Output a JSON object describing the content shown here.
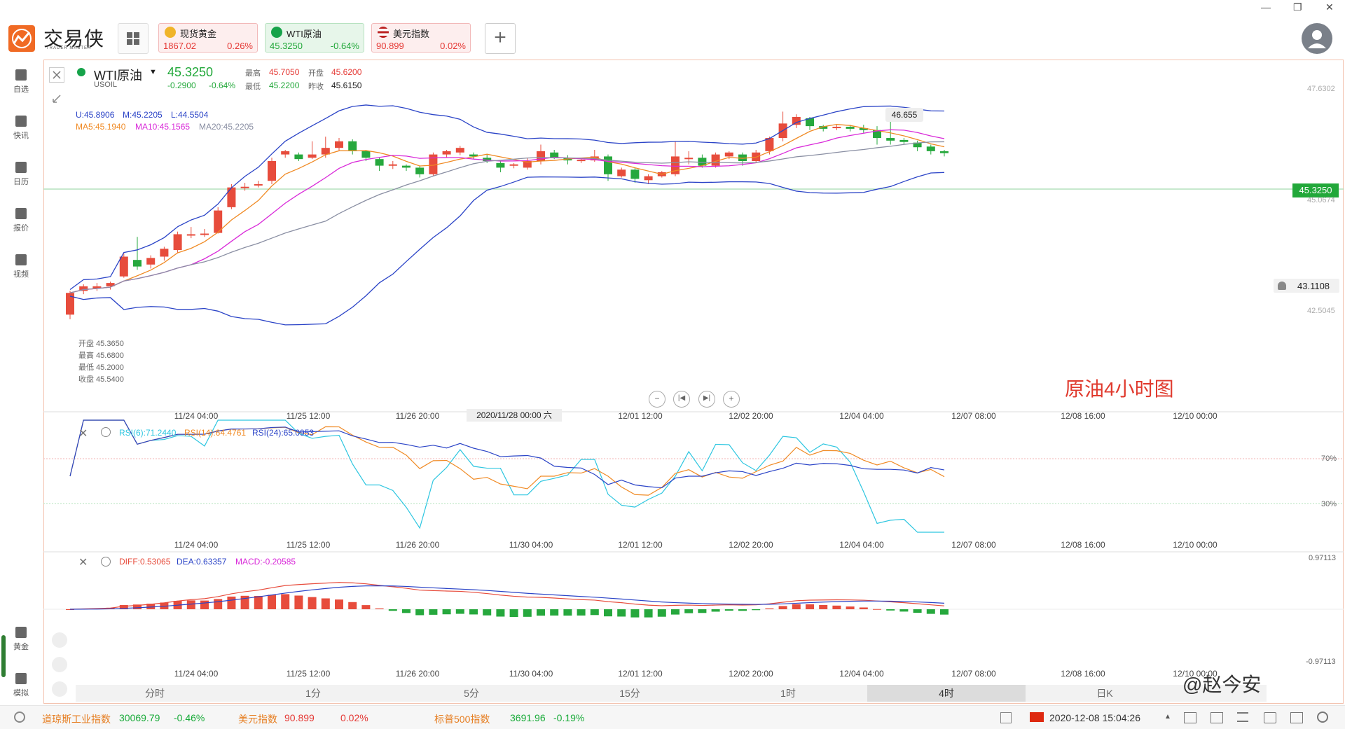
{
  "app": {
    "name": "交易侠",
    "subtitle": "TRADER MASTER"
  },
  "window_controls": [
    "—",
    "❐",
    "✕"
  ],
  "tabs": [
    {
      "name": "现货黄金",
      "price": "1867.02",
      "change": "0.26%",
      "trend": "up",
      "icon": "gold-coin-icon"
    },
    {
      "name": "WTI原油",
      "price": "45.3250",
      "change": "-0.64%",
      "trend": "down",
      "icon": "oil-drop-icon",
      "active": true
    },
    {
      "name": "美元指数",
      "price": "90.899",
      "change": "0.02%",
      "trend": "up",
      "icon": "us-flag-icon"
    }
  ],
  "add_tab_label": "+",
  "sidebar": {
    "items": [
      {
        "label": "自选",
        "icon": "bookmark-icon"
      },
      {
        "label": "快讯",
        "icon": "news-icon"
      },
      {
        "label": "日历",
        "icon": "calendar-icon"
      },
      {
        "label": "报价",
        "icon": "chart-line-icon"
      },
      {
        "label": "视频",
        "icon": "video-icon"
      }
    ],
    "bottom_items": [
      {
        "label": "黄金",
        "icon": "gold-grid-icon"
      },
      {
        "label": "模拟",
        "icon": "wallet-icon"
      }
    ]
  },
  "symbol": {
    "name": "WTI原油",
    "code": "USOIL",
    "price": "45.3250",
    "change": "-0.2900",
    "change_pct": "-0.64%",
    "high_label": "最高",
    "high": "45.7050",
    "open_label": "开盘",
    "open": "45.6200",
    "low_label": "最低",
    "low": "45.2200",
    "prev_label": "昨收",
    "prev": "45.6150"
  },
  "indicators": {
    "boll": {
      "u": "U:45.8906",
      "m": "M:45.2205",
      "l": "L:44.5504"
    },
    "ma": {
      "ma5": "MA5:45.1940",
      "ma10": "MA10:45.1565",
      "ma20": "MA20:45.2205"
    },
    "rsi": {
      "r6": "RSI(6):71.2440",
      "r14": "RSI(14):64.4761",
      "r24": "RSI(24):65.0953"
    },
    "macd": {
      "diff": "DIFF:0.53065",
      "dea": "DEA:0.63357",
      "macd": "MACD:-0.20585"
    }
  },
  "tooltip": {
    "open": "开盘 45.3650",
    "high": "最高 45.6800",
    "low": "最低 45.2000",
    "close": "收盘 45.5400"
  },
  "price_axis": {
    "top": "47.6302",
    "current": "45.3250",
    "current_sub": "45.0674",
    "low": "42.5045",
    "alert": "43.1108",
    "max_marker": "46.655"
  },
  "rsi_axis": {
    "l70": "70%",
    "l30": "30%"
  },
  "macd_axis": {
    "top": "0.97113",
    "bottom": "-0.97113"
  },
  "annotation": "原油4小时图",
  "crosshair_date": "2020/11/28 00:00 六",
  "x_ticks_main": [
    "11/24 04:00",
    "11/25 12:00",
    "11/26 20:00",
    "",
    "12/01 12:00",
    "12/02 20:00",
    "12/04 04:00",
    "12/07 08:00",
    "12/08 16:00",
    "12/10 00:00"
  ],
  "x_ticks_sub": [
    "11/24 04:00",
    "11/25 12:00",
    "11/26 20:00",
    "11/30 04:00",
    "12/01 12:00",
    "12/02 20:00",
    "12/04 04:00",
    "12/07 08:00",
    "12/08 16:00",
    "12/10 00:00"
  ],
  "periods": [
    "分时",
    "1分",
    "5分",
    "15分",
    "1时",
    "4时",
    "日K"
  ],
  "active_period": "4时",
  "status": {
    "items": [
      {
        "name": "道琼斯工业指数",
        "value": "30069.79",
        "change": "-0.46%",
        "trend": "down"
      },
      {
        "name": "美元指数",
        "value": "90.899",
        "change": "0.02%",
        "trend": "up"
      },
      {
        "name": "标普500指数",
        "value": "3691.96",
        "change": "-0.19%",
        "trend": "down"
      }
    ],
    "datetime": "2020-12-08 15:04:26"
  },
  "watermark": "@赵今安",
  "colors": {
    "up": "#e74c3c",
    "down": "#26a83d",
    "accent": "#f06a24",
    "boll": "#2b44c7",
    "ma5": "#f08a24",
    "ma10": "#d92ad9",
    "ma20": "#8a8fa3"
  },
  "chart_data": {
    "type": "candlestick",
    "title": "原油4小时图",
    "candles": [
      [
        44.62,
        44.95,
        44.55,
        44.98
      ],
      [
        44.98,
        45.05,
        44.93,
        45.08
      ],
      [
        45.02,
        45.05,
        44.98,
        45.1
      ],
      [
        45.05,
        45.1,
        45.0,
        45.12
      ],
      [
        45.2,
        45.5,
        45.18,
        45.55
      ],
      [
        45.45,
        45.35,
        45.3,
        45.8
      ],
      [
        45.38,
        45.48,
        45.32,
        45.52
      ],
      [
        45.5,
        45.62,
        45.44,
        45.65
      ],
      [
        45.6,
        45.84,
        45.55,
        45.88
      ],
      [
        45.82,
        45.84,
        45.78,
        45.95
      ],
      [
        45.84,
        45.85,
        45.8,
        45.92
      ],
      [
        45.86,
        46.2,
        45.85,
        46.25
      ],
      [
        46.25,
        46.55,
        46.22,
        46.6
      ],
      [
        46.55,
        46.56,
        46.5,
        46.62
      ],
      [
        46.6,
        46.6,
        46.55,
        46.65
      ],
      [
        46.65,
        46.95,
        46.6,
        47.0
      ],
      [
        47.05,
        47.1,
        47.0,
        47.12
      ],
      [
        47.05,
        46.98,
        46.95,
        47.08
      ],
      [
        47.0,
        47.05,
        46.98,
        47.25
      ],
      [
        47.05,
        47.15,
        47.0,
        47.32
      ],
      [
        47.15,
        47.25,
        47.1,
        47.3
      ],
      [
        47.25,
        47.1,
        47.05,
        47.28
      ],
      [
        47.1,
        47.0,
        46.95,
        47.12
      ],
      [
        46.98,
        46.88,
        46.8,
        47.0
      ],
      [
        46.88,
        46.9,
        46.83,
        46.95
      ],
      [
        46.88,
        46.85,
        46.8,
        46.9
      ],
      [
        46.85,
        46.75,
        46.7,
        46.88
      ],
      [
        46.75,
        47.05,
        46.72,
        47.08
      ],
      [
        47.05,
        47.1,
        47.0,
        47.12
      ],
      [
        47.08,
        47.15,
        47.04,
        47.18
      ],
      [
        47.05,
        47.02,
        46.98,
        47.08
      ],
      [
        47.0,
        46.95,
        46.92,
        47.05
      ],
      [
        46.92,
        46.85,
        46.78,
        46.95
      ],
      [
        46.88,
        46.9,
        46.84,
        46.92
      ],
      [
        46.85,
        46.95,
        46.82,
        47.0
      ],
      [
        46.95,
        47.1,
        46.9,
        47.2
      ],
      [
        47.08,
        47.0,
        46.98,
        47.12
      ],
      [
        47.0,
        46.96,
        46.9,
        47.04
      ],
      [
        46.95,
        46.97,
        46.92,
        47.0
      ],
      [
        46.96,
        47.02,
        46.94,
        47.12
      ],
      [
        47.02,
        46.75,
        46.65,
        47.05
      ],
      [
        46.72,
        46.82,
        46.7,
        46.85
      ],
      [
        46.82,
        46.68,
        46.62,
        46.85
      ],
      [
        46.66,
        46.72,
        46.6,
        46.75
      ],
      [
        46.72,
        46.78,
        46.7,
        46.8
      ],
      [
        46.75,
        47.02,
        46.72,
        47.25
      ],
      [
        46.98,
        47.0,
        46.9,
        47.1
      ],
      [
        47.0,
        46.88,
        46.85,
        47.05
      ],
      [
        46.88,
        47.05,
        46.85,
        47.08
      ],
      [
        47.02,
        47.08,
        46.98,
        47.1
      ],
      [
        47.05,
        46.95,
        46.88,
        47.08
      ],
      [
        46.95,
        47.08,
        46.92,
        47.12
      ],
      [
        47.1,
        47.3,
        47.05,
        47.32
      ],
      [
        47.3,
        47.52,
        47.25,
        47.7
      ],
      [
        47.5,
        47.62,
        47.45,
        47.66
      ],
      [
        47.6,
        47.48,
        47.42,
        47.62
      ],
      [
        47.48,
        47.44,
        47.4,
        47.5
      ],
      [
        47.45,
        47.47,
        47.42,
        47.5
      ],
      [
        47.47,
        47.44,
        47.4,
        47.5
      ],
      [
        47.45,
        47.42,
        47.38,
        47.5
      ],
      [
        47.42,
        47.3,
        47.2,
        47.48
      ],
      [
        47.3,
        47.26,
        47.2,
        47.6
      ],
      [
        47.27,
        47.24,
        47.2,
        47.3
      ],
      [
        47.23,
        47.16,
        47.1,
        47.26
      ],
      [
        47.17,
        47.1,
        47.05,
        47.2
      ],
      [
        47.1,
        47.07,
        47.02,
        47.12
      ]
    ]
  }
}
